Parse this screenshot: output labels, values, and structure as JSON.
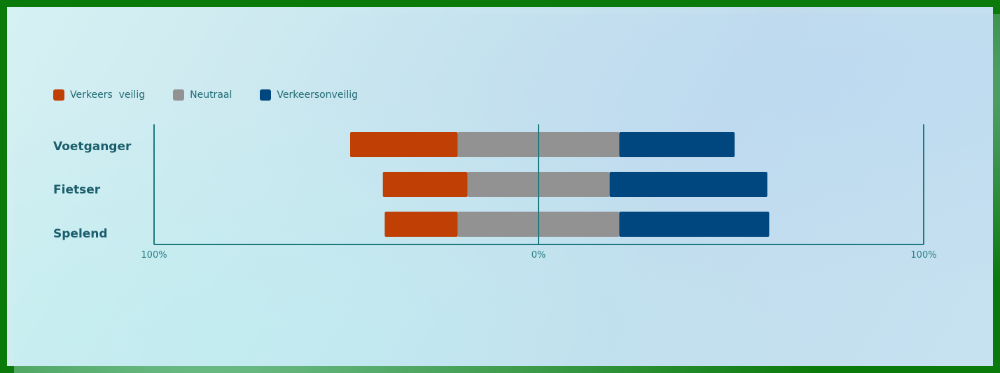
{
  "legend": [
    {
      "label": "Verkeers  veilig",
      "color": "#bf3f05"
    },
    {
      "label": "Neutraal",
      "color": "#929292"
    },
    {
      "label": "Verkeersonveilig",
      "color": "#00467f"
    }
  ],
  "axis": {
    "tick_left": "100%",
    "tick_center": "0%",
    "tick_right": "100%"
  },
  "chart_data": {
    "type": "bar",
    "orientation": "horizontal-diverging",
    "categories": [
      "Voetganger",
      "Fietser",
      "Spelend"
    ],
    "series": [
      {
        "name": "Verkeers  veilig",
        "color": "#bf3f05",
        "values": [
          28,
          22,
          19
        ]
      },
      {
        "name": "Neutraal",
        "color": "#929292",
        "values": [
          42,
          37,
          42
        ]
      },
      {
        "name": "Verkeersonveilig",
        "color": "#00467f",
        "values": [
          30,
          41,
          39
        ]
      }
    ],
    "xlim": [
      -100,
      100
    ],
    "xtick_labels": [
      "100%",
      "0%",
      "100%"
    ],
    "grid": false,
    "legend_position": "top-left"
  }
}
